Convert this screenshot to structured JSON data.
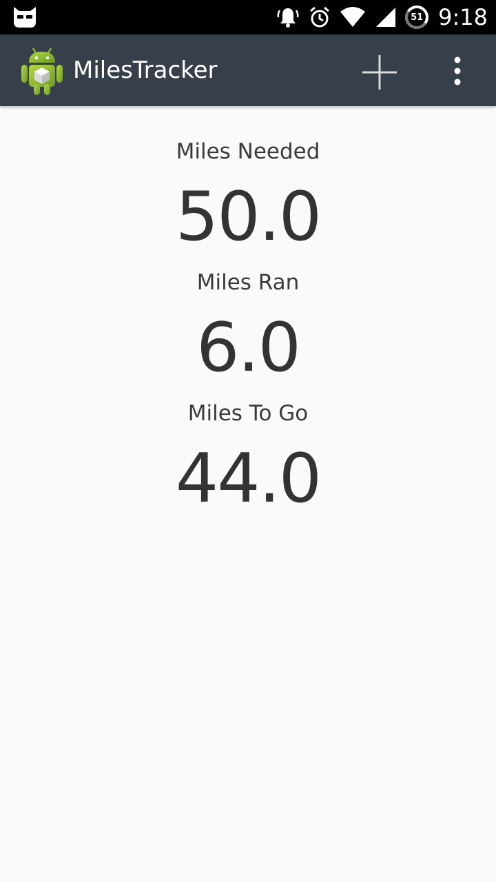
{
  "status_bar": {
    "time": "9:18",
    "battery_level": "51",
    "icons": [
      "cyanogen-icon",
      "notification-bell-icon",
      "alarm-clock-icon",
      "wifi-icon",
      "cell-signal-icon",
      "battery-icon"
    ]
  },
  "action_bar": {
    "title": "MilesTracker",
    "actions": [
      "add-icon",
      "overflow-menu-icon"
    ]
  },
  "stats": [
    {
      "label": "Miles Needed",
      "value": "50.0"
    },
    {
      "label": "Miles Ran",
      "value": "6.0"
    },
    {
      "label": "Miles To Go",
      "value": "44.0"
    }
  ],
  "colors": {
    "status_bar": "#000000",
    "action_bar": "#37404a",
    "background": "#fafafa",
    "text": "#333333"
  }
}
